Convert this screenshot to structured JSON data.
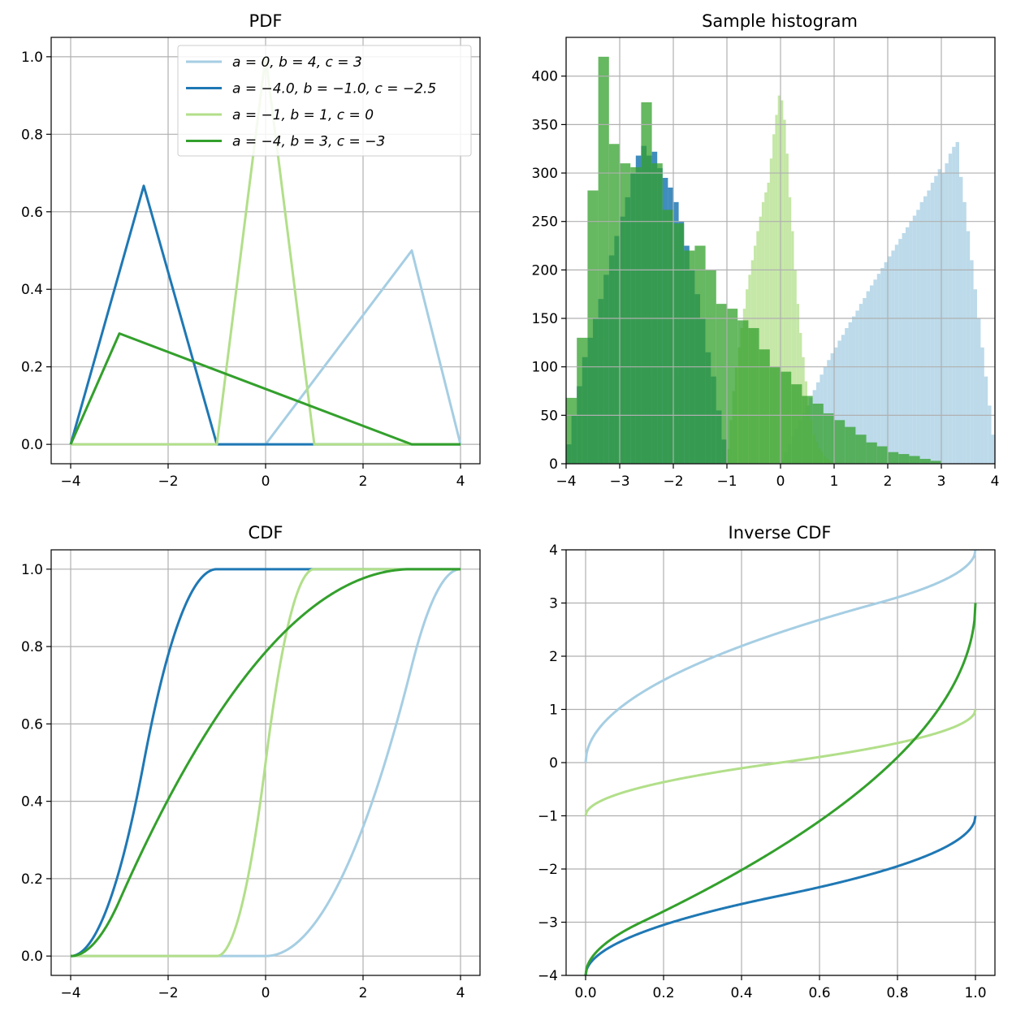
{
  "chart_data": [
    {
      "type": "line",
      "title": "PDF",
      "xlabel": "",
      "ylabel": "",
      "xlim": [
        -4.4,
        4.4
      ],
      "ylim": [
        -0.05,
        1.05
      ],
      "grid": true,
      "xticks": [
        -4,
        -2,
        0,
        2,
        4
      ],
      "yticks": [
        0.0,
        0.2,
        0.4,
        0.6,
        0.8,
        1.0
      ],
      "xtick_labels": [
        "−4",
        "−2",
        "0",
        "2",
        "4"
      ],
      "ytick_labels": [
        "0.0",
        "0.2",
        "0.4",
        "0.6",
        "0.8",
        "1.0"
      ],
      "legend_position": "top-right",
      "series": [
        {
          "name": "a = 0, b = 4, c = 3",
          "color": "#a6cee3",
          "x": [
            -4,
            0,
            3,
            4
          ],
          "y": [
            0,
            0,
            0.5,
            0
          ]
        },
        {
          "name": "a = −4.0, b = −1.0, c = −2.5",
          "color": "#1f78b4",
          "x": [
            -4,
            -2.5,
            -1,
            4
          ],
          "y": [
            0,
            0.667,
            0,
            0
          ]
        },
        {
          "name": "a = −1, b = 1, c = 0",
          "color": "#b2df8a",
          "x": [
            -4,
            -1,
            0,
            1,
            4
          ],
          "y": [
            0,
            0,
            1.0,
            0,
            0
          ]
        },
        {
          "name": "a = −4, b = 3, c = −3",
          "color": "#33a02c",
          "x": [
            -4,
            -3,
            3,
            4
          ],
          "y": [
            0,
            0.286,
            0,
            0
          ]
        }
      ]
    },
    {
      "type": "histogram",
      "title": "Sample histogram",
      "xlabel": "",
      "ylabel": "",
      "xlim": [
        -4,
        4
      ],
      "ylim": [
        0,
        440
      ],
      "grid": true,
      "xticks": [
        -4,
        -3,
        -2,
        -1,
        0,
        1,
        2,
        3,
        4
      ],
      "yticks": [
        0,
        50,
        100,
        150,
        200,
        250,
        300,
        350,
        400
      ],
      "xtick_labels": [
        "−4",
        "−3",
        "−2",
        "−1",
        "0",
        "1",
        "2",
        "3",
        "4"
      ],
      "ytick_labels": [
        "0",
        "50",
        "100",
        "150",
        "200",
        "250",
        "300",
        "350",
        "400"
      ],
      "series": [
        {
          "name": "a = 0, b = 4, c = 3",
          "color": "#a6cee3",
          "opacity": 0.75,
          "range": [
            0,
            4
          ],
          "counts": [
            4,
            12,
            20,
            28,
            36,
            45,
            52,
            60,
            68,
            76,
            84,
            92,
            100,
            107,
            114,
            120,
            127,
            133,
            140,
            146,
            152,
            158,
            165,
            171,
            178,
            184,
            190,
            196,
            202,
            208,
            214,
            220,
            226,
            232,
            238,
            244,
            250,
            256,
            262,
            270,
            276,
            282,
            290,
            297,
            304,
            300,
            310,
            320,
            327,
            332,
            296,
            270,
            240,
            210,
            180,
            150,
            120,
            90,
            60,
            30
          ]
        },
        {
          "name": "a = −4.0, b = −1.0, c = −2.5",
          "color": "#1f78b4",
          "opacity": 0.85,
          "range": [
            -4,
            -1
          ],
          "counts": [
            20,
            50,
            80,
            110,
            130,
            150,
            170,
            195,
            215,
            235,
            255,
            275,
            300,
            318,
            328,
            318,
            322,
            305,
            295,
            285,
            270,
            250,
            225,
            200,
            175,
            150,
            115,
            90,
            55,
            25
          ]
        },
        {
          "name": "a = −1, b = 1, c = 0",
          "color": "#b2df8a",
          "opacity": 0.75,
          "range": [
            -1,
            1
          ],
          "counts": [
            15,
            45,
            75,
            100,
            120,
            140,
            160,
            180,
            195,
            210,
            225,
            240,
            255,
            270,
            280,
            290,
            315,
            340,
            360,
            380,
            375,
            355,
            320,
            275,
            240,
            200,
            165,
            135,
            110,
            85,
            60,
            45,
            30,
            22,
            16,
            12,
            8,
            5,
            3,
            2
          ]
        },
        {
          "name": "a = −4, b = 3, c = −3",
          "color": "#33a02c",
          "opacity": 0.75,
          "range": [
            -4,
            3
          ],
          "counts": [
            68,
            130,
            282,
            420,
            330,
            310,
            306,
            373,
            310,
            262,
            248,
            220,
            225,
            200,
            165,
            160,
            148,
            140,
            118,
            100,
            95,
            82,
            70,
            62,
            52,
            45,
            38,
            30,
            22,
            18,
            12,
            10,
            8,
            5,
            3
          ]
        }
      ]
    },
    {
      "type": "line",
      "title": "CDF",
      "xlabel": "",
      "ylabel": "",
      "xlim": [
        -4.4,
        4.4
      ],
      "ylim": [
        -0.05,
        1.05
      ],
      "grid": true,
      "xticks": [
        -4,
        -2,
        0,
        2,
        4
      ],
      "yticks": [
        0.0,
        0.2,
        0.4,
        0.6,
        0.8,
        1.0
      ],
      "xtick_labels": [
        "−4",
        "−2",
        "0",
        "2",
        "4"
      ],
      "ytick_labels": [
        "0.0",
        "0.2",
        "0.4",
        "0.6",
        "0.8",
        "1.0"
      ],
      "series": [
        {
          "name": "a = 0, b = 4, c = 3",
          "color": "#a6cee3",
          "params": [
            0,
            4,
            3
          ]
        },
        {
          "name": "a = −4.0, b = −1.0, c = −2.5",
          "color": "#1f78b4",
          "params": [
            -4,
            -1,
            -2.5
          ]
        },
        {
          "name": "a = −1, b = 1, c = 0",
          "color": "#b2df8a",
          "params": [
            -1,
            1,
            0
          ]
        },
        {
          "name": "a = −4, b = 3, c = −3",
          "color": "#33a02c",
          "params": [
            -4,
            3,
            -3
          ]
        }
      ]
    },
    {
      "type": "line",
      "title": "Inverse CDF",
      "xlabel": "",
      "ylabel": "",
      "xlim": [
        -0.05,
        1.05
      ],
      "ylim": [
        -4,
        4
      ],
      "grid": true,
      "xticks": [
        0.0,
        0.2,
        0.4,
        0.6,
        0.8,
        1.0
      ],
      "yticks": [
        -4,
        -3,
        -2,
        -1,
        0,
        1,
        2,
        3,
        4
      ],
      "xtick_labels": [
        "0.0",
        "0.2",
        "0.4",
        "0.6",
        "0.8",
        "1.0"
      ],
      "ytick_labels": [
        "−4",
        "−3",
        "−2",
        "−1",
        "0",
        "1",
        "2",
        "3",
        "4"
      ],
      "series": [
        {
          "name": "a = 0, b = 4, c = 3",
          "color": "#a6cee3",
          "params": [
            0,
            4,
            3
          ]
        },
        {
          "name": "a = −4.0, b = −1.0, c = −2.5",
          "color": "#1f78b4",
          "params": [
            -4,
            -1,
            -2.5
          ]
        },
        {
          "name": "a = −1, b = 1, c = 0",
          "color": "#b2df8a",
          "params": [
            -1,
            1,
            0
          ]
        },
        {
          "name": "a = −4, b = 3, c = −3",
          "color": "#33a02c",
          "params": [
            -4,
            3,
            -3
          ]
        }
      ]
    }
  ]
}
